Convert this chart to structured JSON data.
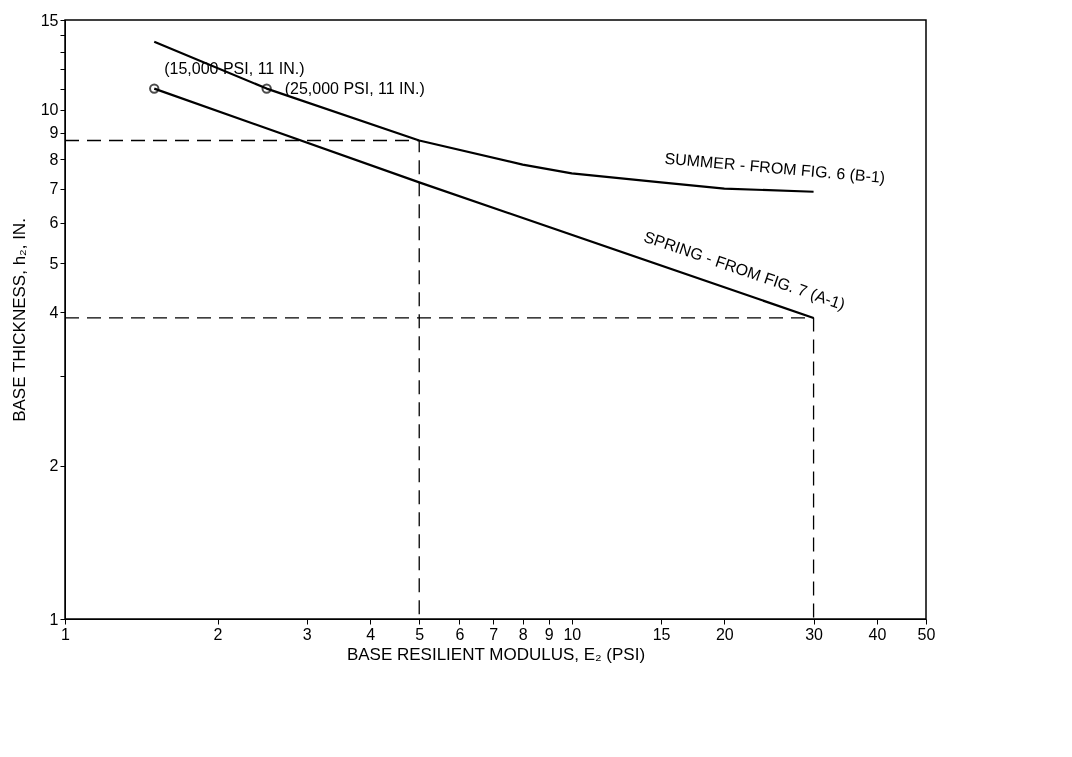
{
  "chart_data": {
    "type": "line",
    "xlabel": "BASE RESILIENT MODULUS, E₂ (PSI)",
    "ylabel": "BASE THICKNESS, h₂, IN.",
    "log": "xy",
    "grid": false,
    "xlim": [
      1,
      50
    ],
    "ylim": [
      1,
      15
    ],
    "xticks": [
      1,
      2,
      3,
      4,
      5,
      6,
      7,
      8,
      9,
      10,
      15,
      20,
      30,
      40,
      50
    ],
    "yticks": [
      1,
      2,
      {
        "value": 3,
        "label": null
      },
      4,
      5,
      6,
      7,
      8,
      9,
      10,
      {
        "value": 11,
        "label": null
      },
      {
        "value": 12,
        "label": null
      },
      {
        "value": 13,
        "label": null
      },
      {
        "value": 14,
        "label": null
      },
      15
    ],
    "series": [
      {
        "name": "SUMMER - FROM FIG. 6 (B-1)",
        "color": "#000000",
        "line_style": "solid",
        "x": [
          1.5,
          2.5,
          5,
          8,
          10,
          15,
          20,
          30
        ],
        "values": [
          13.6,
          11,
          8.7,
          7.8,
          7.5,
          7.2,
          7.0,
          6.9
        ]
      },
      {
        "name": "SPRING - FROM FIG. 7 (A-1)",
        "color": "#000000",
        "line_style": "solid",
        "x": [
          1.5,
          5,
          30
        ],
        "values": [
          11,
          7.2,
          3.9
        ]
      },
      {
        "color": "#000000",
        "line_style": "dashed",
        "x": [
          1,
          5,
          5
        ],
        "values": [
          8.7,
          8.7,
          1
        ]
      },
      {
        "color": "#000000",
        "line_style": "dashed",
        "x": [
          1,
          30,
          30
        ],
        "values": [
          3.9,
          3.9,
          1
        ]
      },
      {
        "type": "scatter",
        "color": "#000000",
        "marker": "circle",
        "x": [
          1.5,
          2.5
        ],
        "values": [
          11,
          11
        ]
      }
    ],
    "annotations": [
      {
        "text": "(15,000 PSI, 11 IN.)",
        "x": 1.5,
        "y": 11
      },
      {
        "text": "(25,000 PSI, 11 IN.)",
        "x": 2.5,
        "y": 11
      }
    ]
  }
}
